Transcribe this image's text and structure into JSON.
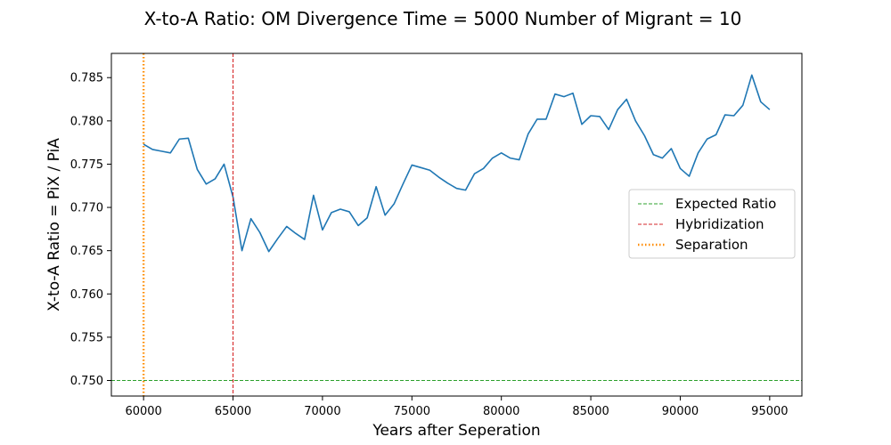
{
  "chart_data": {
    "type": "line",
    "title": "X-to-A Ratio: OM Divergence Time = 5000  Number of Migrant = 10",
    "xlabel": "Years after Seperation",
    "ylabel": "X-to-A Ratio = PiX / PiA",
    "xlim": [
      58200,
      96800
    ],
    "ylim": [
      0.7482,
      0.7878
    ],
    "x_ticks": [
      60000,
      65000,
      70000,
      75000,
      80000,
      85000,
      90000,
      95000
    ],
    "y_ticks": [
      0.75,
      0.755,
      0.76,
      0.765,
      0.77,
      0.775,
      0.78,
      0.785
    ],
    "y_tick_labels": [
      "0.750",
      "0.755",
      "0.760",
      "0.765",
      "0.770",
      "0.775",
      "0.780",
      "0.785"
    ],
    "grid": false,
    "legend_position": "center-right",
    "series": [
      {
        "name": "",
        "color": "#1f77b4",
        "x": [
          60000,
          60500,
          61000,
          61500,
          62000,
          62500,
          63000,
          63500,
          64000,
          64500,
          65000,
          65500,
          66000,
          66500,
          67000,
          67500,
          68000,
          68500,
          69000,
          69500,
          70000,
          70500,
          71000,
          71500,
          72000,
          72500,
          73000,
          73500,
          74000,
          74500,
          75000,
          75500,
          76000,
          76500,
          77000,
          77500,
          78000,
          78500,
          79000,
          79500,
          80000,
          80500,
          81000,
          81500,
          82000,
          82500,
          83000,
          83500,
          84000,
          84500,
          85000,
          85500,
          86000,
          86500,
          87000,
          87500,
          88000,
          88500,
          89000,
          89500,
          90000,
          90500,
          91000,
          91500,
          92000,
          92500,
          93000,
          93500,
          94000,
          94500,
          95000
        ],
        "y": [
          0.7773,
          0.7767,
          0.7765,
          0.7763,
          0.7779,
          0.778,
          0.7744,
          0.7727,
          0.7733,
          0.775,
          0.7712,
          0.765,
          0.7687,
          0.7671,
          0.7649,
          0.7664,
          0.7678,
          0.767,
          0.7663,
          0.7714,
          0.7674,
          0.7694,
          0.7698,
          0.7695,
          0.7679,
          0.7688,
          0.7724,
          0.7691,
          0.7704,
          0.7727,
          0.7749,
          0.7746,
          0.7743,
          0.7735,
          0.7728,
          0.7722,
          0.772,
          0.7739,
          0.7745,
          0.7757,
          0.7763,
          0.7757,
          0.7755,
          0.7785,
          0.7802,
          0.7802,
          0.7831,
          0.7828,
          0.7832,
          0.7796,
          0.7806,
          0.7805,
          0.779,
          0.7813,
          0.7825,
          0.78,
          0.7783,
          0.7761,
          0.7757,
          0.7768,
          0.7745,
          0.7736,
          0.7763,
          0.7779,
          0.7784,
          0.7807,
          0.7806,
          0.7818,
          0.7853,
          0.7822,
          0.7813
        ]
      }
    ],
    "reference_lines": [
      {
        "orientation": "horizontal",
        "value": 0.75,
        "name": "Expected Ratio",
        "color": "#2ca02c",
        "style": "dashed"
      },
      {
        "orientation": "vertical",
        "value": 65000,
        "name": "Hybridization",
        "color": "#d62728",
        "style": "dashed"
      },
      {
        "orientation": "vertical",
        "value": 60000,
        "name": "Separation",
        "color": "#ff8c00",
        "style": "dotted"
      }
    ]
  }
}
